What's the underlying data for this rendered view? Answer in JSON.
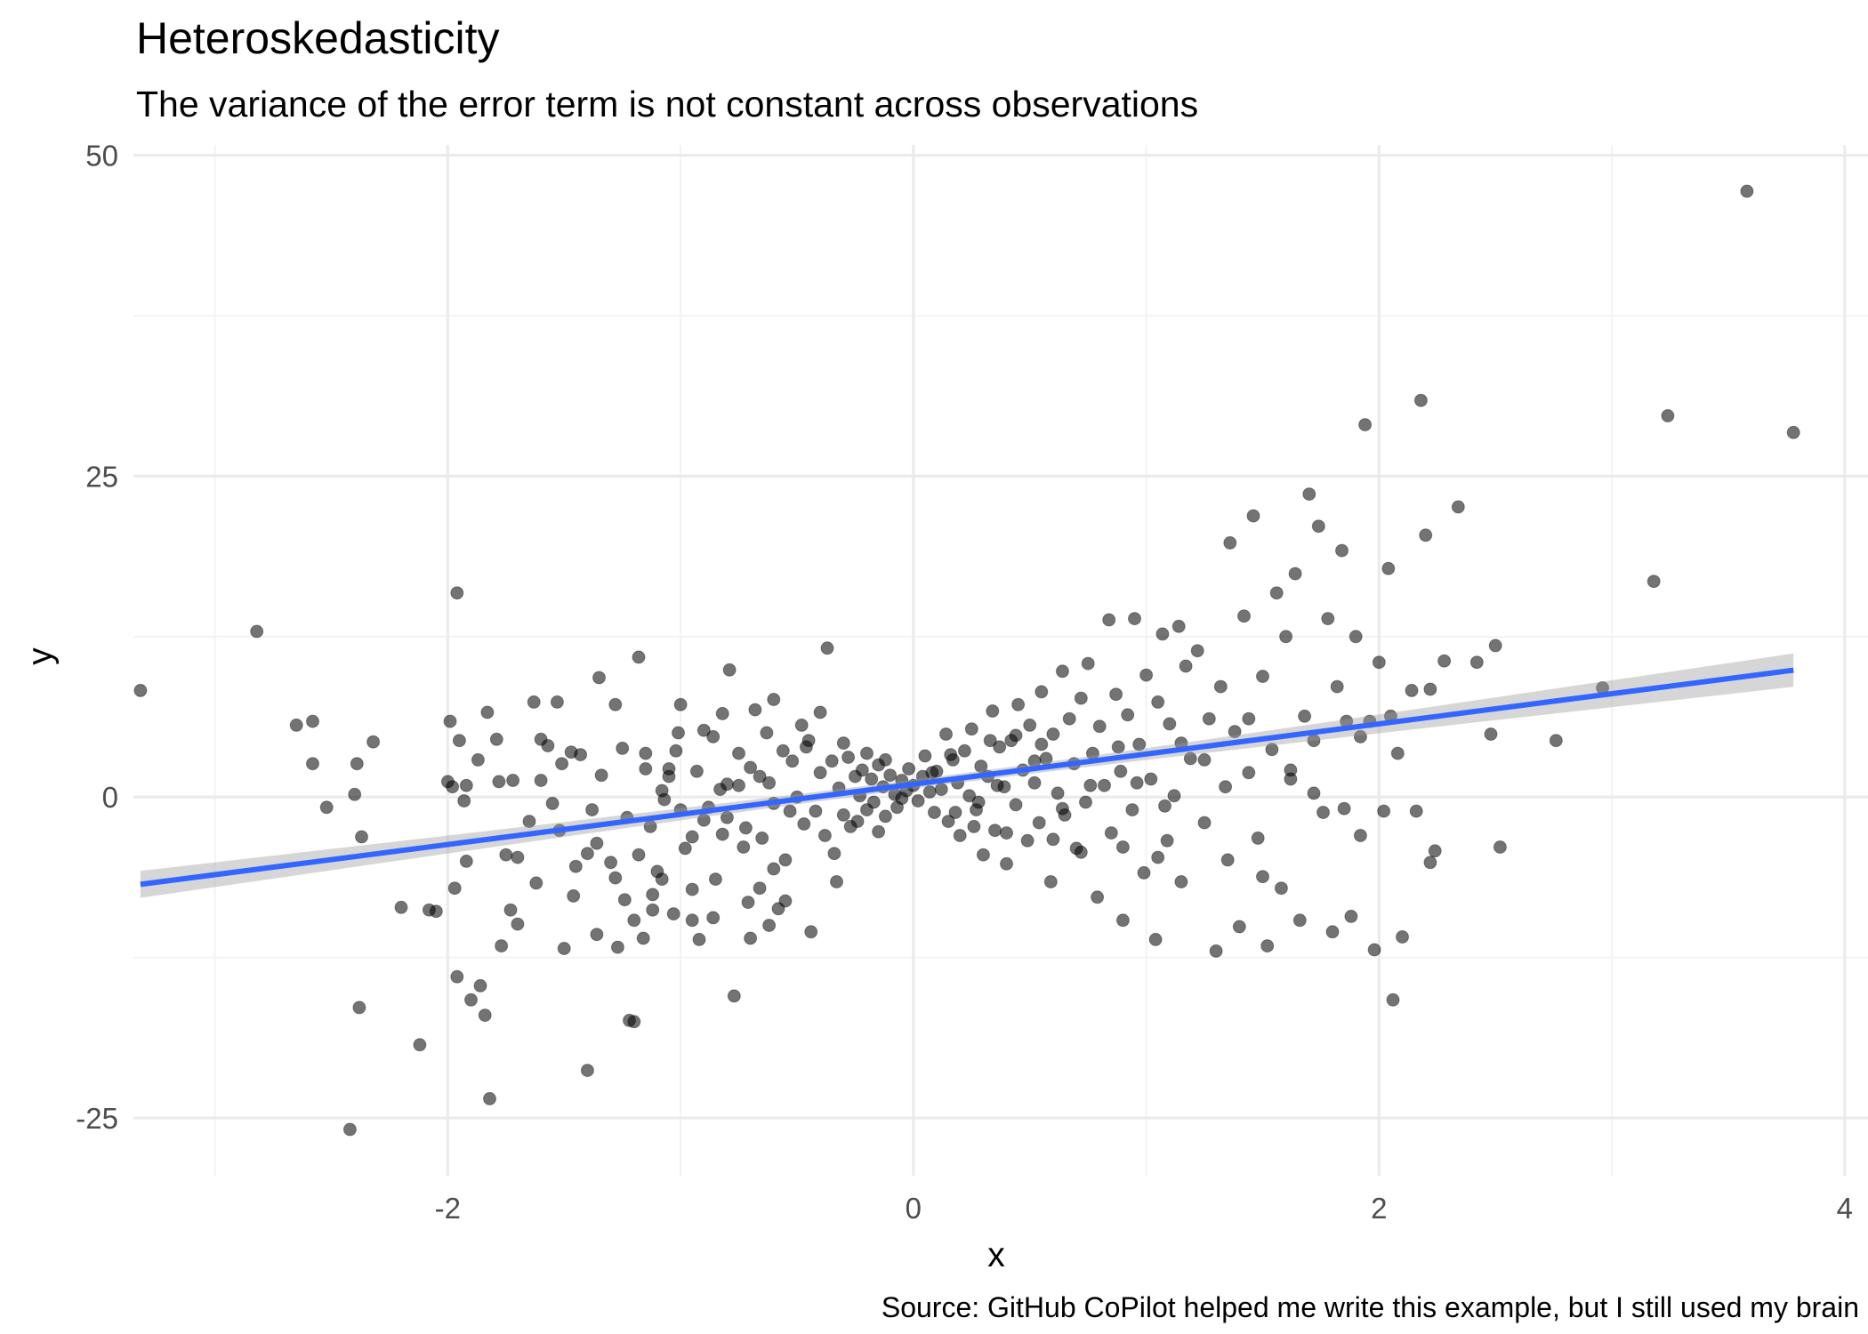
{
  "chart_data": {
    "type": "scatter",
    "title": "Heteroskedasticity",
    "subtitle": "The variance of the error term is not constant across observations",
    "caption": "Source: GitHub CoPilot helped me write this example, but I still used my brain",
    "xlabel": "x",
    "ylabel": "y",
    "xlim": [
      -3.35,
      4.1
    ],
    "ylim": [
      -29.5,
      50.8
    ],
    "xticks": [
      -2,
      0,
      2,
      4
    ],
    "xtick_labels": [
      "-2",
      "0",
      "2",
      "4"
    ],
    "yticks": [
      -25,
      0,
      25,
      50
    ],
    "ytick_labels": [
      "-25",
      "0",
      "25",
      "50"
    ],
    "xminor": [
      -3,
      -1,
      1,
      3
    ],
    "yminor": [
      -12.5,
      12.5,
      37.5
    ],
    "grid": true,
    "legend": "none",
    "point_color": "#000000",
    "fit_color": "#3366ff",
    "band_color": "#999999",
    "fit_line": {
      "intercept": 1.0,
      "slope": 2.35,
      "x_range": [
        -3.32,
        3.78
      ]
    },
    "confidence_band": {
      "halfwidth_at_mean": 0.35,
      "halfwidth_at_left": 1.05,
      "halfwidth_at_right": 1.3,
      "x_mean": 0.1
    },
    "points": [
      [
        -3.32,
        8.3
      ],
      [
        -2.82,
        12.9
      ],
      [
        -2.58,
        5.9
      ],
      [
        -2.58,
        2.6
      ],
      [
        -2.52,
        -0.8
      ],
      [
        -2.42,
        -25.9
      ],
      [
        -2.4,
        0.2
      ],
      [
        -2.39,
        2.6
      ],
      [
        -2.37,
        -3.1
      ],
      [
        -2.32,
        4.3
      ],
      [
        -2.38,
        -16.4
      ],
      [
        -2.2,
        -8.6
      ],
      [
        -2.12,
        -19.3
      ],
      [
        -2.08,
        -8.8
      ],
      [
        -2.05,
        -8.9
      ],
      [
        -2.0,
        1.2
      ],
      [
        -1.99,
        5.9
      ],
      [
        -1.98,
        0.8
      ],
      [
        -1.97,
        -7.1
      ],
      [
        -1.96,
        15.9
      ],
      [
        -1.96,
        -14.0
      ],
      [
        -1.95,
        4.4
      ],
      [
        -1.93,
        -0.3
      ],
      [
        -1.92,
        0.9
      ],
      [
        -1.92,
        -5.0
      ],
      [
        -1.9,
        -15.8
      ],
      [
        -1.87,
        2.9
      ],
      [
        -1.86,
        -14.7
      ],
      [
        -1.84,
        -17.0
      ],
      [
        -1.83,
        6.6
      ],
      [
        -1.82,
        -23.5
      ],
      [
        -1.79,
        4.5
      ],
      [
        -1.77,
        -11.6
      ],
      [
        -1.75,
        -4.5
      ],
      [
        -1.73,
        -8.8
      ],
      [
        -1.72,
        1.3
      ],
      [
        -1.7,
        -9.9
      ],
      [
        -1.7,
        -4.7
      ],
      [
        -1.65,
        -1.9
      ],
      [
        -1.63,
        7.4
      ],
      [
        -1.6,
        1.3
      ],
      [
        -1.57,
        4.0
      ],
      [
        -1.55,
        -0.5
      ],
      [
        -1.53,
        7.4
      ],
      [
        -1.51,
        2.6
      ],
      [
        -1.47,
        3.5
      ],
      [
        -1.46,
        -7.7
      ],
      [
        -1.43,
        3.3
      ],
      [
        -1.4,
        -21.3
      ],
      [
        -1.38,
        -1.0
      ],
      [
        -1.36,
        -3.6
      ],
      [
        -1.34,
        1.7
      ],
      [
        -1.3,
        -5.1
      ],
      [
        -1.28,
        7.2
      ],
      [
        -1.27,
        -11.7
      ],
      [
        -1.25,
        3.8
      ],
      [
        -1.23,
        -1.6
      ],
      [
        -1.2,
        -9.6
      ],
      [
        -1.2,
        -17.5
      ],
      [
        -1.18,
        -4.5
      ],
      [
        -1.16,
        -11.0
      ],
      [
        -1.15,
        2.2
      ],
      [
        -1.15,
        3.4
      ],
      [
        -1.13,
        -2.3
      ],
      [
        -1.12,
        -8.8
      ],
      [
        -1.1,
        -5.8
      ],
      [
        -1.08,
        0.5
      ],
      [
        -1.07,
        -0.2
      ],
      [
        -1.05,
        1.6
      ],
      [
        -1.03,
        -9.1
      ],
      [
        -1.02,
        3.6
      ],
      [
        -1.01,
        5.0
      ],
      [
        -1.0,
        -1.0
      ],
      [
        -0.98,
        -4.0
      ],
      [
        -0.95,
        -7.2
      ],
      [
        -0.93,
        2.0
      ],
      [
        -0.92,
        -11.1
      ],
      [
        -0.9,
        -1.8
      ],
      [
        -0.88,
        -0.8
      ],
      [
        -0.86,
        4.7
      ],
      [
        -0.85,
        -6.4
      ],
      [
        -0.83,
        0.6
      ],
      [
        -0.82,
        -2.9
      ],
      [
        -0.8,
        -1.6
      ],
      [
        -0.79,
        9.9
      ],
      [
        -0.77,
        -15.5
      ],
      [
        -0.75,
        0.9
      ],
      [
        -0.73,
        -3.9
      ],
      [
        -0.71,
        -8.2
      ],
      [
        -0.7,
        2.3
      ],
      [
        -0.68,
        6.8
      ],
      [
        -0.66,
        -7.1
      ],
      [
        -0.65,
        -3.2
      ],
      [
        -0.63,
        5.0
      ],
      [
        -0.62,
        1.1
      ],
      [
        -0.6,
        -5.6
      ],
      [
        -0.58,
        -8.7
      ],
      [
        -0.56,
        3.6
      ],
      [
        -0.55,
        -4.9
      ],
      [
        -0.53,
        -1.1
      ],
      [
        -0.52,
        2.8
      ],
      [
        -0.5,
        0.0
      ],
      [
        -0.48,
        5.6
      ],
      [
        -0.47,
        -2.1
      ],
      [
        -0.45,
        4.4
      ],
      [
        -0.44,
        -10.5
      ],
      [
        -0.42,
        -1.1
      ],
      [
        -0.4,
        1.9
      ],
      [
        -0.38,
        -3.0
      ],
      [
        -0.37,
        11.6
      ],
      [
        -0.35,
        2.8
      ],
      [
        -0.33,
        -6.6
      ],
      [
        -0.32,
        0.7
      ],
      [
        -0.3,
        -1.4
      ],
      [
        -0.28,
        3.1
      ],
      [
        -0.27,
        -2.3
      ],
      [
        -0.25,
        1.6
      ],
      [
        -0.23,
        0.1
      ],
      [
        -0.22,
        2.1
      ],
      [
        -0.2,
        -1.0
      ],
      [
        -0.18,
        1.4
      ],
      [
        -0.17,
        -0.4
      ],
      [
        -0.15,
        2.5
      ],
      [
        -0.13,
        0.8
      ],
      [
        -0.12,
        -1.5
      ],
      [
        -0.1,
        1.7
      ],
      [
        -0.08,
        0.2
      ],
      [
        -0.07,
        -0.8
      ],
      [
        -0.05,
        1.3
      ],
      [
        -0.03,
        0.5
      ],
      [
        -0.02,
        2.2
      ],
      [
        0.0,
        0.9
      ],
      [
        0.02,
        -0.3
      ],
      [
        0.04,
        1.6
      ],
      [
        0.05,
        3.2
      ],
      [
        0.07,
        0.4
      ],
      [
        0.09,
        -1.2
      ],
      [
        0.1,
        2.0
      ],
      [
        0.12,
        0.6
      ],
      [
        0.14,
        4.9
      ],
      [
        0.15,
        -1.9
      ],
      [
        0.17,
        2.9
      ],
      [
        0.19,
        1.1
      ],
      [
        0.2,
        -3.0
      ],
      [
        0.22,
        3.6
      ],
      [
        0.24,
        0.1
      ],
      [
        0.25,
        5.3
      ],
      [
        0.27,
        -1.0
      ],
      [
        0.29,
        2.4
      ],
      [
        0.3,
        -4.5
      ],
      [
        0.32,
        1.6
      ],
      [
        0.34,
        6.7
      ],
      [
        0.35,
        -2.6
      ],
      [
        0.37,
        3.9
      ],
      [
        0.39,
        0.8
      ],
      [
        0.4,
        -5.2
      ],
      [
        0.42,
        4.4
      ],
      [
        0.44,
        -0.6
      ],
      [
        0.45,
        7.2
      ],
      [
        0.47,
        2.1
      ],
      [
        0.49,
        -3.4
      ],
      [
        0.5,
        5.6
      ],
      [
        0.52,
        1.1
      ],
      [
        0.54,
        -2.0
      ],
      [
        0.55,
        8.2
      ],
      [
        0.57,
        3.0
      ],
      [
        0.59,
        -6.6
      ],
      [
        0.6,
        4.9
      ],
      [
        0.62,
        0.3
      ],
      [
        0.64,
        9.8
      ],
      [
        0.65,
        -1.4
      ],
      [
        0.67,
        6.1
      ],
      [
        0.69,
        2.6
      ],
      [
        0.7,
        -4.0
      ],
      [
        0.72,
        7.7
      ],
      [
        0.74,
        -0.4
      ],
      [
        0.75,
        10.4
      ],
      [
        0.77,
        3.4
      ],
      [
        0.79,
        -7.8
      ],
      [
        0.8,
        5.5
      ],
      [
        0.82,
        0.9
      ],
      [
        0.84,
        13.8
      ],
      [
        0.85,
        -2.8
      ],
      [
        0.87,
        8.0
      ],
      [
        0.89,
        2.0
      ],
      [
        0.9,
        -9.6
      ],
      [
        0.92,
        6.4
      ],
      [
        0.94,
        -1.0
      ],
      [
        0.95,
        13.9
      ],
      [
        0.97,
        4.1
      ],
      [
        0.99,
        -5.9
      ],
      [
        1.0,
        9.5
      ],
      [
        1.02,
        1.4
      ],
      [
        1.04,
        -11.1
      ],
      [
        1.05,
        7.4
      ],
      [
        1.07,
        12.7
      ],
      [
        1.09,
        -3.4
      ],
      [
        1.1,
        5.7
      ],
      [
        1.12,
        0.1
      ],
      [
        1.14,
        13.3
      ],
      [
        1.15,
        -6.6
      ],
      [
        1.17,
        10.2
      ],
      [
        1.19,
        3.0
      ],
      [
        1.22,
        11.4
      ],
      [
        1.25,
        -2.0
      ],
      [
        1.27,
        6.1
      ],
      [
        1.3,
        -12.0
      ],
      [
        1.32,
        8.6
      ],
      [
        1.34,
        0.8
      ],
      [
        1.36,
        19.8
      ],
      [
        1.38,
        5.1
      ],
      [
        1.4,
        -10.1
      ],
      [
        1.42,
        14.1
      ],
      [
        1.44,
        1.9
      ],
      [
        1.46,
        21.9
      ],
      [
        1.48,
        -3.2
      ],
      [
        1.5,
        9.4
      ],
      [
        1.52,
        -11.6
      ],
      [
        1.54,
        3.7
      ],
      [
        1.56,
        15.9
      ],
      [
        1.58,
        -7.1
      ],
      [
        1.6,
        12.5
      ],
      [
        1.62,
        1.4
      ],
      [
        1.64,
        17.4
      ],
      [
        1.66,
        -9.6
      ],
      [
        1.68,
        6.3
      ],
      [
        1.7,
        23.6
      ],
      [
        1.72,
        4.4
      ],
      [
        1.74,
        21.1
      ],
      [
        1.76,
        -1.2
      ],
      [
        1.78,
        13.9
      ],
      [
        1.8,
        -10.5
      ],
      [
        1.82,
        8.6
      ],
      [
        1.84,
        19.2
      ],
      [
        1.86,
        5.9
      ],
      [
        1.88,
        -9.3
      ],
      [
        1.9,
        12.5
      ],
      [
        1.92,
        -3.0
      ],
      [
        1.94,
        29.0
      ],
      [
        1.96,
        5.9
      ],
      [
        1.98,
        -11.9
      ],
      [
        2.0,
        10.5
      ],
      [
        2.02,
        -1.1
      ],
      [
        2.04,
        17.8
      ],
      [
        2.06,
        -15.8
      ],
      [
        2.08,
        3.4
      ],
      [
        2.1,
        -10.9
      ],
      [
        2.14,
        8.3
      ],
      [
        2.16,
        -1.1
      ],
      [
        2.18,
        30.9
      ],
      [
        2.2,
        20.4
      ],
      [
        2.22,
        -5.1
      ],
      [
        2.24,
        -4.2
      ],
      [
        2.28,
        10.6
      ],
      [
        2.34,
        22.6
      ],
      [
        2.42,
        10.5
      ],
      [
        2.48,
        4.9
      ],
      [
        2.5,
        11.8
      ],
      [
        2.52,
        -3.9
      ],
      [
        2.76,
        4.4
      ],
      [
        2.96,
        8.5
      ],
      [
        3.18,
        16.8
      ],
      [
        3.24,
        29.7
      ],
      [
        3.58,
        47.2
      ],
      [
        3.78,
        28.4
      ],
      [
        -2.65,
        5.6
      ],
      [
        -1.78,
        1.2
      ],
      [
        -1.5,
        -11.8
      ],
      [
        -1.22,
        -17.4
      ],
      [
        -0.95,
        -9.6
      ],
      [
        -0.7,
        -11.0
      ],
      [
        -0.55,
        -8.1
      ],
      [
        -0.62,
        -10.0
      ],
      [
        -0.86,
        -9.4
      ],
      [
        -1.12,
        -7.6
      ],
      [
        -1.28,
        -6.3
      ],
      [
        -1.45,
        -5.4
      ],
      [
        -1.62,
        -6.7
      ],
      [
        -1.35,
        9.3
      ],
      [
        -1.18,
        10.9
      ],
      [
        -1.0,
        7.2
      ],
      [
        -0.82,
        6.5
      ],
      [
        -0.6,
        7.6
      ],
      [
        -0.4,
        6.6
      ],
      [
        -0.75,
        3.4
      ],
      [
        -0.9,
        5.2
      ],
      [
        -1.05,
        2.2
      ],
      [
        -0.46,
        3.9
      ],
      [
        -0.24,
        -1.9
      ],
      [
        -0.15,
        -2.7
      ],
      [
        -0.34,
        -4.4
      ],
      [
        -0.3,
        4.2
      ],
      [
        -0.2,
        3.4
      ],
      [
        0.6,
        -3.3
      ],
      [
        0.72,
        -4.3
      ],
      [
        0.9,
        -3.9
      ],
      [
        1.05,
        -4.7
      ],
      [
        0.88,
        3.9
      ],
      [
        1.15,
        4.2
      ],
      [
        1.25,
        2.9
      ],
      [
        0.55,
        4.1
      ],
      [
        0.44,
        4.8
      ],
      [
        0.33,
        4.4
      ],
      [
        0.18,
        -1.2
      ],
      [
        0.26,
        -2.3
      ],
      [
        -0.6,
        -0.5
      ],
      [
        -0.66,
        1.6
      ],
      [
        -0.72,
        -2.4
      ],
      [
        -0.8,
        1.0
      ],
      [
        -0.95,
        -3.1
      ],
      [
        -1.08,
        -6.4
      ],
      [
        -1.24,
        -8.0
      ],
      [
        -1.36,
        -10.7
      ],
      [
        -1.4,
        -4.4
      ],
      [
        -1.52,
        -2.6
      ],
      [
        -1.6,
        4.5
      ],
      [
        1.35,
        -4.9
      ],
      [
        1.5,
        -6.2
      ],
      [
        1.44,
        6.1
      ],
      [
        1.62,
        2.1
      ],
      [
        1.72,
        0.3
      ],
      [
        1.85,
        -0.9
      ],
      [
        1.92,
        4.7
      ],
      [
        2.05,
        6.3
      ],
      [
        2.22,
        8.4
      ],
      [
        0.96,
        1.1
      ],
      [
        1.08,
        -0.7
      ],
      [
        0.76,
        0.9
      ],
      [
        0.64,
        -0.9
      ],
      [
        0.52,
        2.8
      ],
      [
        0.4,
        -2.8
      ],
      [
        -0.12,
        2.9
      ],
      [
        -0.05,
        -0.1
      ],
      [
        0.08,
        1.9
      ],
      [
        0.16,
        3.3
      ],
      [
        0.28,
        -0.4
      ],
      [
        0.36,
        0.9
      ]
    ]
  }
}
